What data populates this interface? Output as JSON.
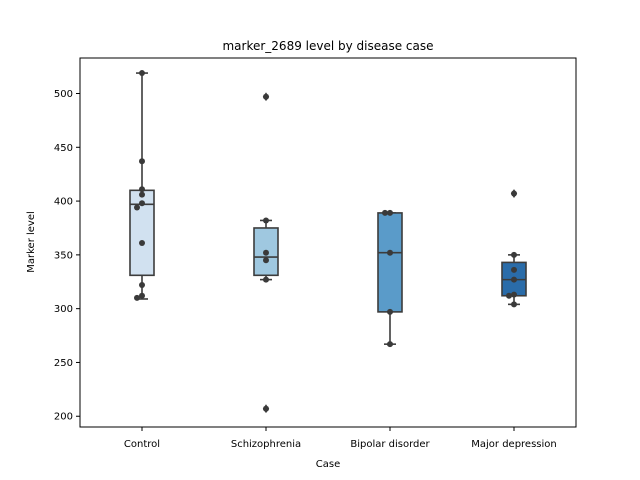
{
  "chart_data": {
    "type": "box",
    "title": "marker_2689 level by disease case",
    "xlabel": "Case",
    "ylabel": "Marker level",
    "ylim": [
      190,
      533
    ],
    "yticks": [
      200,
      250,
      300,
      350,
      400,
      450,
      500
    ],
    "categories": [
      "Control",
      "Schizophrenia",
      "Bipolar disorder",
      "Major depression"
    ],
    "colors": [
      "#d1e1f0",
      "#9fc8e0",
      "#5a9bc9",
      "#2a6ca9"
    ],
    "edge_color": "#3c3c3c",
    "grid": false,
    "legend": "none",
    "boxes": [
      {
        "category": "Control",
        "whisker_low": 309,
        "q1": 331,
        "median": 397,
        "q3": 410,
        "whisker_high": 519,
        "outliers": []
      },
      {
        "category": "Schizophrenia",
        "whisker_low": 327,
        "q1": 331,
        "median": 348,
        "q3": 375,
        "whisker_high": 382,
        "outliers": [
          497,
          207
        ]
      },
      {
        "category": "Bipolar disorder",
        "whisker_low": 267,
        "q1": 297,
        "median": 352,
        "q3": 389,
        "whisker_high": 389,
        "outliers": []
      },
      {
        "category": "Major depression",
        "whisker_low": 304,
        "q1": 312,
        "median": 327,
        "q3": 343,
        "whisker_high": 350,
        "outliers": [
          407
        ]
      }
    ],
    "points": [
      {
        "category": "Control",
        "values": [
          519,
          437,
          411,
          406,
          398,
          394,
          361,
          322,
          312,
          310
        ]
      },
      {
        "category": "Schizophrenia",
        "values": [
          497,
          382,
          352,
          345,
          327,
          207
        ]
      },
      {
        "category": "Bipolar disorder",
        "values": [
          389,
          389,
          352,
          297,
          267
        ]
      },
      {
        "category": "Major depression",
        "values": [
          407,
          350,
          336,
          327,
          313,
          312,
          304
        ]
      }
    ]
  }
}
